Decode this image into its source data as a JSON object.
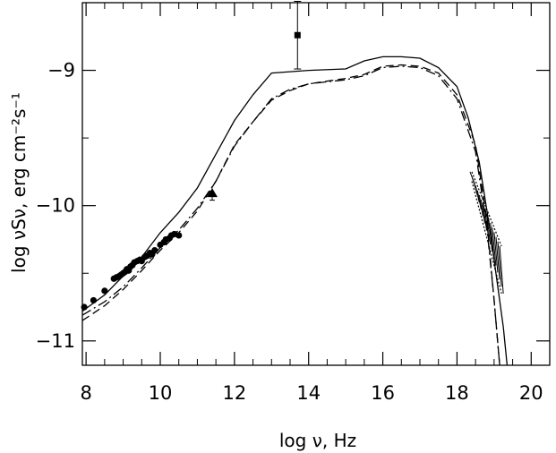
{
  "chart_data": {
    "type": "scatter",
    "title": "",
    "xlabel": "log ν,  Hz",
    "ylabel": "log νSν, erg cm⁻²s⁻¹",
    "xlim": [
      7.9,
      20.5
    ],
    "ylim": [
      -11.18,
      -8.5
    ],
    "xticks": [
      {
        "value": 8,
        "label": "8"
      },
      {
        "value": 10,
        "label": "10"
      },
      {
        "value": 12,
        "label": "12"
      },
      {
        "value": 14,
        "label": "14"
      },
      {
        "value": 16,
        "label": "16"
      },
      {
        "value": 18,
        "label": "18"
      },
      {
        "value": 20,
        "label": "20"
      }
    ],
    "yticks": [
      {
        "value": -9,
        "label": "−9"
      },
      {
        "value": -10,
        "label": "−10"
      },
      {
        "value": -11,
        "label": "−11"
      }
    ],
    "xminor": [
      8.5,
      9,
      9.5,
      10.5,
      11,
      11.5,
      12.5,
      13,
      13.5,
      14.5,
      15,
      15.5,
      16.5,
      17,
      17.5,
      18.5,
      19,
      19.5
    ],
    "yminor": [
      -8.5,
      -9.5,
      -10.5
    ],
    "grid": false,
    "series": [
      {
        "style": "solid",
        "x": [
          7.9,
          8.5,
          9.0,
          9.5,
          10.0,
          10.5,
          11.0,
          11.5,
          12.0,
          12.5,
          13.0,
          14.0,
          15.0,
          15.5,
          16.0,
          16.5,
          17.0,
          17.5,
          18.0,
          18.3,
          18.6,
          18.9,
          19.1,
          19.25,
          19.35
        ],
        "y": [
          -10.78,
          -10.66,
          -10.52,
          -10.38,
          -10.2,
          -10.05,
          -9.87,
          -9.62,
          -9.37,
          -9.18,
          -9.02,
          -9.0,
          -8.99,
          -8.93,
          -8.9,
          -8.9,
          -8.91,
          -8.98,
          -9.12,
          -9.35,
          -9.68,
          -10.2,
          -10.6,
          -10.9,
          -11.18
        ]
      },
      {
        "style": "dashed",
        "x": [
          7.9,
          8.5,
          9.0,
          9.5,
          10.0,
          10.5,
          11.0,
          11.5,
          12.0,
          12.5,
          13.0,
          13.5,
          14.0,
          15.0,
          15.5,
          16.0,
          16.5,
          17.0,
          17.5,
          18.0,
          18.5,
          18.8,
          19.0,
          19.15
        ],
        "y": [
          -10.85,
          -10.74,
          -10.62,
          -10.48,
          -10.33,
          -10.2,
          -10.04,
          -9.82,
          -9.55,
          -9.38,
          -9.22,
          -9.15,
          -9.1,
          -9.06,
          -9.03,
          -8.97,
          -8.96,
          -8.97,
          -9.02,
          -9.18,
          -9.55,
          -10.1,
          -10.7,
          -11.18
        ]
      },
      {
        "style": "dashdot",
        "x": [
          7.9,
          8.5,
          9.0,
          9.5,
          10.0,
          10.5,
          11.0,
          11.5,
          12.0,
          12.5,
          13.0,
          13.5,
          14.0,
          15.0,
          15.5,
          16.0,
          16.5,
          17.0,
          17.5,
          18.0,
          18.5,
          18.8,
          19.0,
          19.15
        ],
        "y": [
          -10.81,
          -10.71,
          -10.6,
          -10.46,
          -10.31,
          -10.18,
          -10.02,
          -9.82,
          -9.56,
          -9.38,
          -9.21,
          -9.14,
          -9.1,
          -9.07,
          -9.04,
          -8.98,
          -8.97,
          -8.98,
          -9.04,
          -9.21,
          -9.6,
          -10.15,
          -10.7,
          -11.18
        ]
      }
    ],
    "points_circle": {
      "x": [
        7.95,
        8.2,
        8.5,
        8.75,
        8.82,
        8.9,
        8.95,
        9.0,
        9.05,
        9.1,
        9.15,
        9.2,
        9.25,
        9.3,
        9.38,
        9.45,
        9.5,
        9.58,
        9.65,
        9.72,
        9.78,
        9.85,
        10.0,
        10.1,
        10.15,
        10.25,
        10.3,
        10.38,
        10.5
      ],
      "y": [
        -10.75,
        -10.7,
        -10.63,
        -10.54,
        -10.53,
        -10.52,
        -10.51,
        -10.5,
        -10.49,
        -10.47,
        -10.48,
        -10.45,
        -10.44,
        -10.42,
        -10.41,
        -10.4,
        -10.41,
        -10.38,
        -10.37,
        -10.35,
        -10.36,
        -10.33,
        -10.29,
        -10.27,
        -10.25,
        -10.24,
        -10.22,
        -10.21,
        -10.22
      ]
    },
    "points_triangle": {
      "x": [
        11.4
      ],
      "y": [
        -9.91
      ],
      "yerr": [
        0.05
      ]
    },
    "points_square": {
      "x": [
        13.7
      ],
      "y": [
        -8.74
      ],
      "yerr": [
        0.25
      ]
    },
    "xray_bowtie": {
      "x": [
        18.4,
        19.2
      ],
      "y_upper": [
        -9.75,
        -10.3
      ],
      "y_lower": [
        -9.82,
        -10.65
      ]
    }
  }
}
